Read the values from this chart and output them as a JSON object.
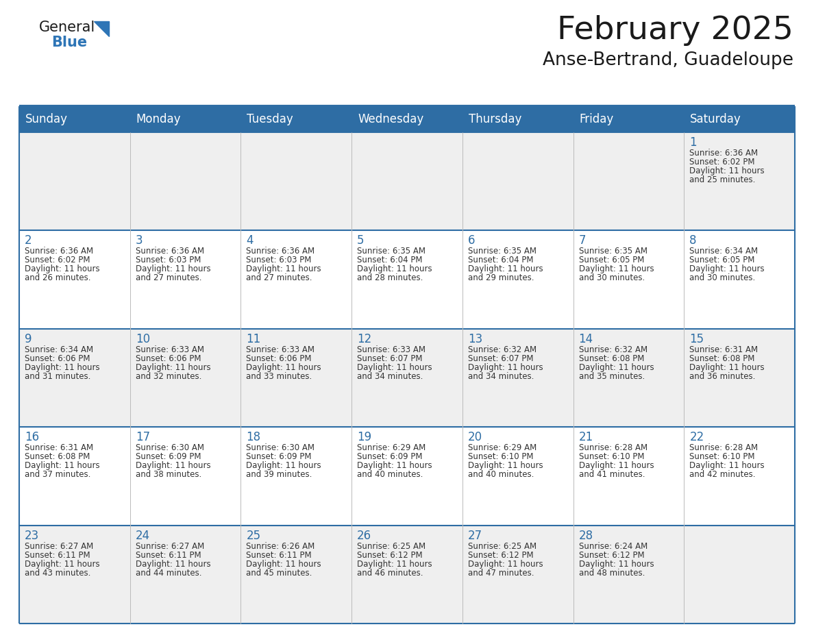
{
  "title": "February 2025",
  "subtitle": "Anse-Bertrand, Guadeloupe",
  "days_of_week": [
    "Sunday",
    "Monday",
    "Tuesday",
    "Wednesday",
    "Thursday",
    "Friday",
    "Saturday"
  ],
  "header_bg": "#2E6DA4",
  "header_text": "#FFFFFF",
  "odd_row_bg": "#EFEFEF",
  "even_row_bg": "#FFFFFF",
  "border_color": "#2E6DA4",
  "day_number_color": "#2E6DA4",
  "cell_text_color": "#333333",
  "title_color": "#1a1a1a",
  "subtitle_color": "#1a1a1a",
  "logo_general_color": "#1a1a1a",
  "logo_blue_color": "#2E75B6",
  "calendar": [
    [
      null,
      null,
      null,
      null,
      null,
      null,
      {
        "day": 1,
        "sunrise": "6:36 AM",
        "sunset": "6:02 PM",
        "daylight": "11 hours and 25 minutes."
      }
    ],
    [
      {
        "day": 2,
        "sunrise": "6:36 AM",
        "sunset": "6:02 PM",
        "daylight": "11 hours and 26 minutes."
      },
      {
        "day": 3,
        "sunrise": "6:36 AM",
        "sunset": "6:03 PM",
        "daylight": "11 hours and 27 minutes."
      },
      {
        "day": 4,
        "sunrise": "6:36 AM",
        "sunset": "6:03 PM",
        "daylight": "11 hours and 27 minutes."
      },
      {
        "day": 5,
        "sunrise": "6:35 AM",
        "sunset": "6:04 PM",
        "daylight": "11 hours and 28 minutes."
      },
      {
        "day": 6,
        "sunrise": "6:35 AM",
        "sunset": "6:04 PM",
        "daylight": "11 hours and 29 minutes."
      },
      {
        "day": 7,
        "sunrise": "6:35 AM",
        "sunset": "6:05 PM",
        "daylight": "11 hours and 30 minutes."
      },
      {
        "day": 8,
        "sunrise": "6:34 AM",
        "sunset": "6:05 PM",
        "daylight": "11 hours and 30 minutes."
      }
    ],
    [
      {
        "day": 9,
        "sunrise": "6:34 AM",
        "sunset": "6:06 PM",
        "daylight": "11 hours and 31 minutes."
      },
      {
        "day": 10,
        "sunrise": "6:33 AM",
        "sunset": "6:06 PM",
        "daylight": "11 hours and 32 minutes."
      },
      {
        "day": 11,
        "sunrise": "6:33 AM",
        "sunset": "6:06 PM",
        "daylight": "11 hours and 33 minutes."
      },
      {
        "day": 12,
        "sunrise": "6:33 AM",
        "sunset": "6:07 PM",
        "daylight": "11 hours and 34 minutes."
      },
      {
        "day": 13,
        "sunrise": "6:32 AM",
        "sunset": "6:07 PM",
        "daylight": "11 hours and 34 minutes."
      },
      {
        "day": 14,
        "sunrise": "6:32 AM",
        "sunset": "6:08 PM",
        "daylight": "11 hours and 35 minutes."
      },
      {
        "day": 15,
        "sunrise": "6:31 AM",
        "sunset": "6:08 PM",
        "daylight": "11 hours and 36 minutes."
      }
    ],
    [
      {
        "day": 16,
        "sunrise": "6:31 AM",
        "sunset": "6:08 PM",
        "daylight": "11 hours and 37 minutes."
      },
      {
        "day": 17,
        "sunrise": "6:30 AM",
        "sunset": "6:09 PM",
        "daylight": "11 hours and 38 minutes."
      },
      {
        "day": 18,
        "sunrise": "6:30 AM",
        "sunset": "6:09 PM",
        "daylight": "11 hours and 39 minutes."
      },
      {
        "day": 19,
        "sunrise": "6:29 AM",
        "sunset": "6:09 PM",
        "daylight": "11 hours and 40 minutes."
      },
      {
        "day": 20,
        "sunrise": "6:29 AM",
        "sunset": "6:10 PM",
        "daylight": "11 hours and 40 minutes."
      },
      {
        "day": 21,
        "sunrise": "6:28 AM",
        "sunset": "6:10 PM",
        "daylight": "11 hours and 41 minutes."
      },
      {
        "day": 22,
        "sunrise": "6:28 AM",
        "sunset": "6:10 PM",
        "daylight": "11 hours and 42 minutes."
      }
    ],
    [
      {
        "day": 23,
        "sunrise": "6:27 AM",
        "sunset": "6:11 PM",
        "daylight": "11 hours and 43 minutes."
      },
      {
        "day": 24,
        "sunrise": "6:27 AM",
        "sunset": "6:11 PM",
        "daylight": "11 hours and 44 minutes."
      },
      {
        "day": 25,
        "sunrise": "6:26 AM",
        "sunset": "6:11 PM",
        "daylight": "11 hours and 45 minutes."
      },
      {
        "day": 26,
        "sunrise": "6:25 AM",
        "sunset": "6:12 PM",
        "daylight": "11 hours and 46 minutes."
      },
      {
        "day": 27,
        "sunrise": "6:25 AM",
        "sunset": "6:12 PM",
        "daylight": "11 hours and 47 minutes."
      },
      {
        "day": 28,
        "sunrise": "6:24 AM",
        "sunset": "6:12 PM",
        "daylight": "11 hours and 48 minutes."
      },
      null
    ]
  ]
}
